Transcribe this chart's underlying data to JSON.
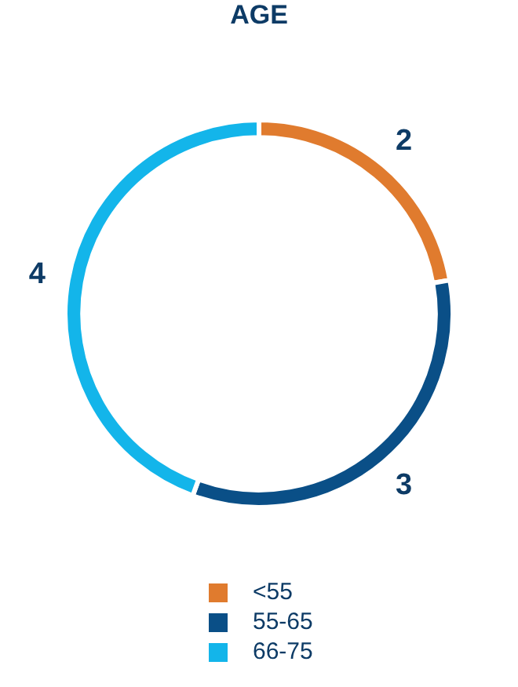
{
  "chart_data": {
    "type": "donut",
    "title": "AGE",
    "categories": [
      "<55",
      "55-65",
      "66-75"
    ],
    "values": [
      2,
      3,
      4
    ],
    "colors": [
      "#e07b2e",
      "#0a4f87",
      "#13b5ea"
    ],
    "data_labels": true,
    "legend": "bottom"
  }
}
